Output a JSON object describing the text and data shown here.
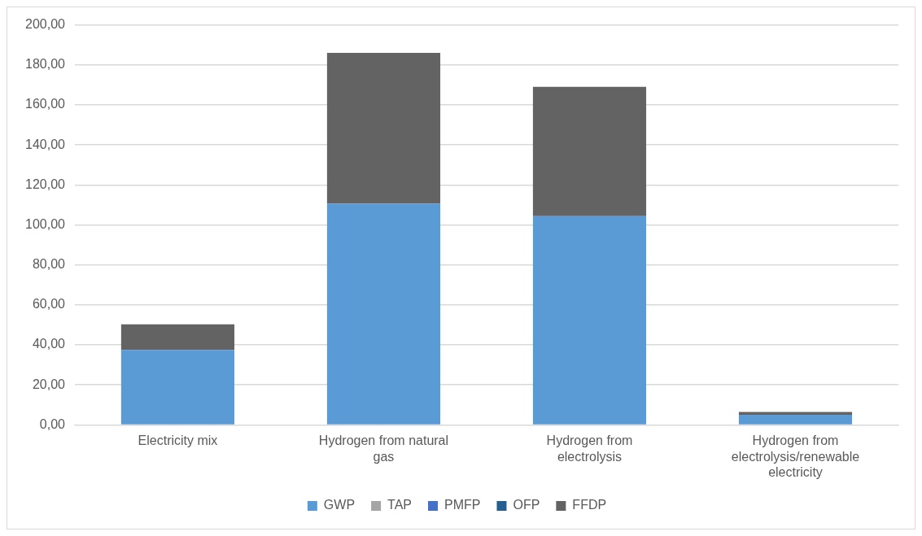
{
  "chart_data": {
    "type": "bar",
    "stacked": true,
    "categories": [
      "Electricity mix",
      "Hydrogen from natural gas",
      "Hydrogen from electrolysis",
      "Hydrogen from electrolysis/renewable electricity"
    ],
    "series": [
      {
        "name": "GWP",
        "color": "#5b9bd5",
        "values": [
          37.5,
          110.6,
          104.4,
          5.0
        ]
      },
      {
        "name": "TAP",
        "color": "#a5a5a5",
        "values": [
          0,
          0,
          0,
          0
        ]
      },
      {
        "name": "PMFP",
        "color": "#4472c4",
        "values": [
          0,
          0,
          0,
          0
        ]
      },
      {
        "name": "OFP",
        "color": "#255e91",
        "values": [
          0,
          0,
          0,
          0
        ]
      },
      {
        "name": "FFDP",
        "color": "#636363",
        "values": [
          12.8,
          75.4,
          64.6,
          1.5
        ]
      }
    ],
    "ylim": [
      0,
      200
    ],
    "yticks": [
      {
        "value": 0,
        "label": "0,00"
      },
      {
        "value": 20,
        "label": "20,00"
      },
      {
        "value": 40,
        "label": "40,00"
      },
      {
        "value": 60,
        "label": "60,00"
      },
      {
        "value": 80,
        "label": "80,00"
      },
      {
        "value": 100,
        "label": "100,00"
      },
      {
        "value": 120,
        "label": "120,00"
      },
      {
        "value": 140,
        "label": "140,00"
      },
      {
        "value": 160,
        "label": "160,00"
      },
      {
        "value": 180,
        "label": "180,00"
      },
      {
        "value": 200,
        "label": "200,00"
      }
    ],
    "grid": "y",
    "legend": "bottom"
  }
}
